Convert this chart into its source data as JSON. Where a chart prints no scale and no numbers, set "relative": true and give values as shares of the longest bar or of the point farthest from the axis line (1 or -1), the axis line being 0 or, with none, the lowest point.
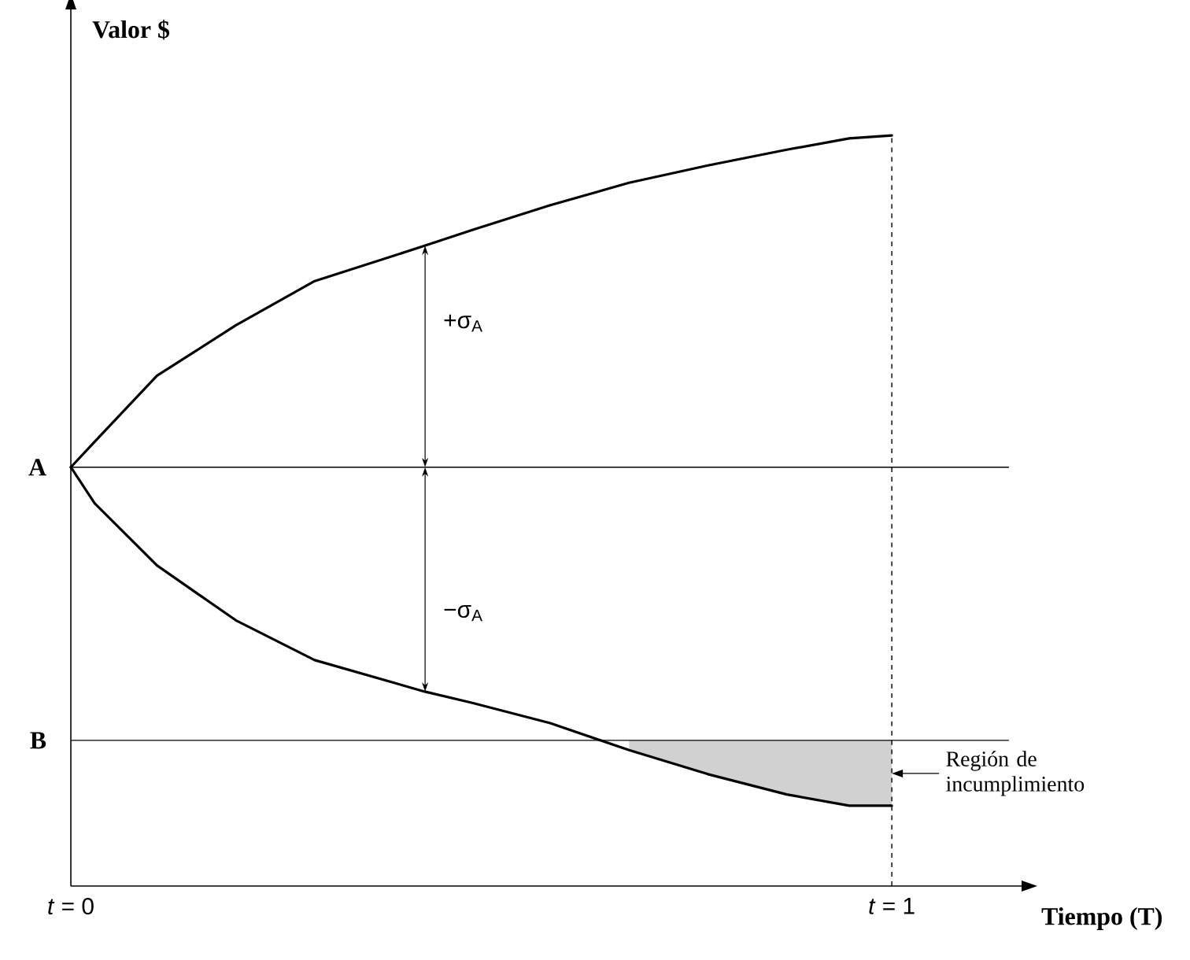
{
  "chart_data": {
    "type": "line",
    "relative": true,
    "xlabel": "Tiempo (T)",
    "ylabel": "Valor $",
    "xlim": [
      0,
      1.16
    ],
    "xticks": [
      {
        "value": 0,
        "label": "*t* = 0"
      },
      {
        "value": 1,
        "label": "*t* = 1"
      }
    ],
    "series": [
      {
        "color": "#000000",
        "line_style": "solid",
        "x": [
          0,
          0.029,
          0.105,
          0.201,
          0.297,
          0.431,
          0.489,
          0.584,
          0.68,
          0.776,
          0.872,
          0.948,
          1
        ],
        "values": [
          0.558,
          0.592,
          0.68,
          0.747,
          0.806,
          0.853,
          0.874,
          0.907,
          0.937,
          0.96,
          0.981,
          0.996,
          1.0
        ]
      },
      {
        "color": "#000000",
        "line_style": "solid",
        "x": [
          0,
          0.029,
          0.105,
          0.201,
          0.297,
          0.431,
          0.489,
          0.584,
          0.68,
          0.776,
          0.872,
          0.948,
          1
        ],
        "values": [
          0.558,
          0.51,
          0.427,
          0.354,
          0.301,
          0.259,
          0.244,
          0.217,
          0.181,
          0.149,
          0.122,
          0.107,
          0.107
        ],
        "lower": [
          null,
          null,
          null,
          null,
          null,
          null,
          null,
          null,
          0.181,
          0.149,
          0.122,
          0.107,
          0.107
        ],
        "upper": [
          null,
          null,
          null,
          null,
          null,
          null,
          null,
          null,
          0.194,
          0.194,
          0.194,
          0.194,
          0.194
        ]
      }
    ],
    "ref_lines": [
      {
        "axis": "y",
        "value": 0.558,
        "label": "A",
        "line_style": "solid"
      },
      {
        "axis": "y",
        "value": 0.194,
        "label": "B",
        "line_style": "solid"
      },
      {
        "axis": "x",
        "value": 1,
        "line_style": "dashed"
      }
    ],
    "annotations": [
      "+σ$_{A}$",
      "−σ$_{A}$",
      {
        "text": "Región de incumplimiento",
        "x": 1,
        "y": 0.15
      }
    ],
    "grid": false,
    "marker": "none"
  }
}
